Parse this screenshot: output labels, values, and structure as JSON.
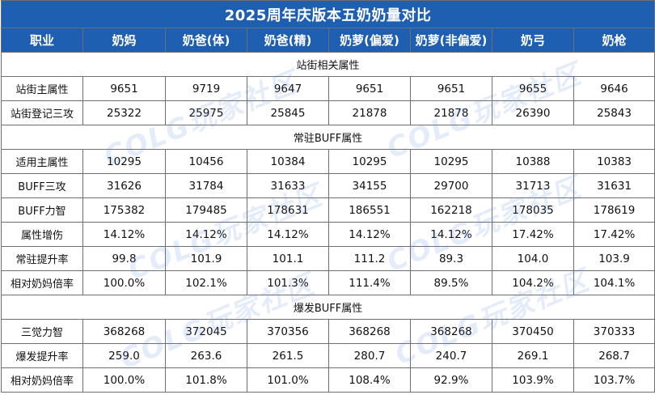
{
  "title": "2025周年庆版本五奶奶量对比",
  "headers": [
    "职业",
    "奶妈",
    "奶爸(体)",
    "奶爸(精)",
    "奶萝(偏爱)",
    "奶萝(非偏爱)",
    "奶弓",
    "奶枪"
  ],
  "sections": [
    {
      "title": "站街相关属性",
      "rows": [
        {
          "label": "站街主属性",
          "values": [
            "9651",
            "9719",
            "9647",
            "9651",
            "9651",
            "9655",
            "9646"
          ]
        },
        {
          "label": "站街登记三攻",
          "values": [
            "25322",
            "25975",
            "25845",
            "21878",
            "21878",
            "26390",
            "25843"
          ]
        }
      ]
    },
    {
      "title": "常驻BUFF属性",
      "rows": [
        {
          "label": "适用主属性",
          "values": [
            "10295",
            "10456",
            "10384",
            "10295",
            "10295",
            "10388",
            "10383"
          ]
        },
        {
          "label": "BUFF三攻",
          "values": [
            "31626",
            "31784",
            "31633",
            "34155",
            "29700",
            "31713",
            "31631"
          ]
        },
        {
          "label": "BUFF力智",
          "values": [
            "175382",
            "179485",
            "178631",
            "186551",
            "162218",
            "178035",
            "178619"
          ]
        },
        {
          "label": "属性增伤",
          "values": [
            "14.12%",
            "14.12%",
            "14.12%",
            "14.12%",
            "14.12%",
            "17.42%",
            "17.42%"
          ]
        },
        {
          "label": "常驻提升率",
          "values": [
            "99.8",
            "101.9",
            "101.1",
            "111.2",
            "89.3",
            "104.0",
            "103.9"
          ]
        },
        {
          "label": "相对奶妈倍率",
          "values": [
            "100.0%",
            "102.1%",
            "101.3%",
            "111.4%",
            "89.5%",
            "104.2%",
            "104.1%"
          ]
        }
      ]
    },
    {
      "title": "爆发BUFF属性",
      "rows": [
        {
          "label": "三觉力智",
          "values": [
            "368268",
            "372045",
            "370356",
            "368268",
            "368268",
            "370450",
            "370333"
          ]
        },
        {
          "label": "爆发提升率",
          "values": [
            "259.0",
            "263.6",
            "261.5",
            "280.7",
            "240.7",
            "269.1",
            "268.7"
          ]
        },
        {
          "label": "相对奶妈倍率",
          "values": [
            "100.0%",
            "101.8%",
            "101.0%",
            "108.4%",
            "92.9%",
            "103.9%",
            "103.7%"
          ]
        }
      ]
    }
  ],
  "watermark": "COLG玩家社区",
  "colors": {
    "header_bg": "#1f5fb2",
    "header_text": "#ffffff",
    "border": "#6f6f6f"
  }
}
